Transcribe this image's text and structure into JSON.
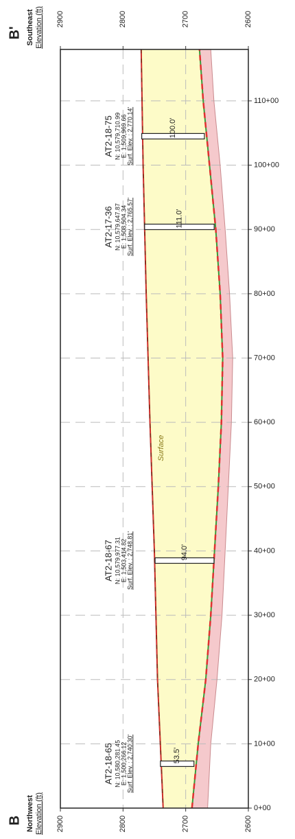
{
  "chart_data": {
    "type": "cross-section",
    "left_end": {
      "mark": "B",
      "direction": "Northwest"
    },
    "right_end": {
      "mark": "B'",
      "direction": "Southeast"
    },
    "y_label": "Elevation (ft)",
    "surface_label": "Surface",
    "ylim": [
      2600,
      2900
    ],
    "yticks": [
      2600,
      2700,
      2800,
      2900
    ],
    "xlim": [
      0,
      118
    ],
    "xticks": [
      {
        "value": 0,
        "label": "0+00"
      },
      {
        "value": 10,
        "label": "10+00"
      },
      {
        "value": 20,
        "label": "20+00"
      },
      {
        "value": 30,
        "label": "30+00"
      },
      {
        "value": 40,
        "label": "40+00"
      },
      {
        "value": 50,
        "label": "50+00"
      },
      {
        "value": 60,
        "label": "60+00"
      },
      {
        "value": 70,
        "label": "70+00"
      },
      {
        "value": 80,
        "label": "80+00"
      },
      {
        "value": 90,
        "label": "90+00"
      },
      {
        "value": 100,
        "label": "100+00"
      },
      {
        "value": 110,
        "label": "110+00"
      }
    ],
    "grid": true,
    "surface": {
      "color": "#8b2a1a",
      "x": [
        0,
        20,
        40,
        60,
        80,
        100,
        118
      ],
      "values": [
        2736,
        2745,
        2750,
        2757,
        2763,
        2768,
        2771
      ]
    },
    "layer_bottom": {
      "color": "#e03030",
      "x": [
        0,
        10,
        20,
        30,
        40,
        50,
        60,
        70,
        80,
        90,
        100,
        110,
        118
      ],
      "values": [
        2690,
        2680,
        2668,
        2660,
        2654,
        2648,
        2643,
        2641,
        2645,
        2652,
        2662,
        2672,
        2678
      ]
    },
    "lower_bottom": {
      "color": "#c98a8e",
      "x": [
        0,
        10,
        20,
        30,
        40,
        50,
        60,
        70,
        80,
        90,
        100,
        110,
        118
      ],
      "values": [
        2665,
        2660,
        2650,
        2642,
        2637,
        2632,
        2627,
        2625,
        2630,
        2637,
        2645,
        2655,
        2660
      ]
    },
    "upper_fill": "#fdfbc8",
    "lower_fill": "#f5c9cc",
    "borings": [
      {
        "name": "AT2-18-65",
        "northing": "N: 10,580,281.45",
        "easting": "E: 1,500,266.12",
        "station": 6.9,
        "top": 2740.3,
        "top_label": "Surf. Elev. : 2,740.30'",
        "depth": 53.5,
        "depth_label": "53.5'"
      },
      {
        "name": "AT2-18-67",
        "northing": "N: 10,579,977.31",
        "easting": "E: 1,503,414.82",
        "station": 38.5,
        "top": 2748.81,
        "top_label": "Surf. Elev. : 2,748.81'",
        "depth": 94.0,
        "depth_label": "94.0'"
      },
      {
        "name": "AT2-17-36",
        "northing": "N: 10,579,647.87",
        "easting": "E: 1,508,504.34",
        "station": 90.4,
        "top": 2765.57,
        "top_label": "Surf. Elev. : 2,765.57'",
        "depth": 111.0,
        "depth_label": "111.0'"
      },
      {
        "name": "AT2-18-75",
        "northing": "N: 10,579,710.99",
        "easting": "E: 1,509,969.66",
        "station": 104.5,
        "top": 2770.14,
        "top_label": "Surf. Elev. : 2,770.14'",
        "depth": 100.0,
        "depth_label": "100.0'"
      }
    ]
  }
}
